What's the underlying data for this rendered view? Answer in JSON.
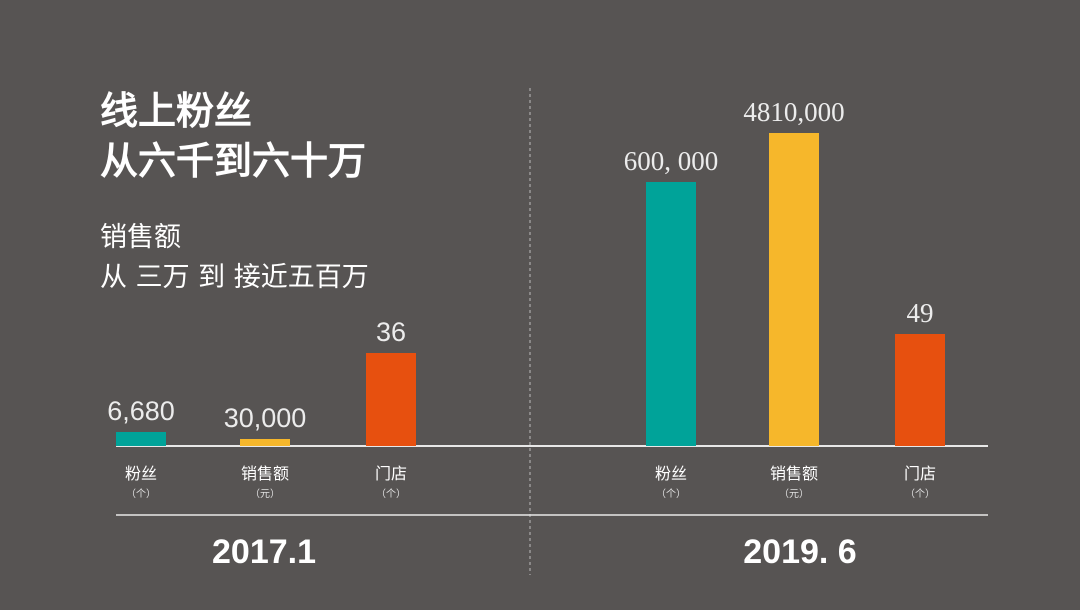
{
  "headline": {
    "line1": "线上粉丝",
    "line2": "从六千到六十万"
  },
  "subline": {
    "line1": "销售额",
    "line2": "从 三万 到 接近五百万"
  },
  "colors": {
    "background": "#575453",
    "teal": "#00A399",
    "yellow": "#F6B72B",
    "orange": "#E7500F",
    "axis": "#e8e8e8"
  },
  "chart_data": [
    {
      "type": "bar",
      "period": "2017.1",
      "categories": [
        "粉丝",
        "销售额",
        "门店"
      ],
      "units": [
        "（个）",
        "（元）",
        "（个）"
      ],
      "values": [
        6680,
        30000,
        36
      ],
      "value_labels": [
        "6,680",
        "30,000",
        "36"
      ],
      "bar_colors": [
        "#00A399",
        "#F6B72B",
        "#E7500F"
      ],
      "note": "bars on independent scales"
    },
    {
      "type": "bar",
      "period": "2019. 6",
      "categories": [
        "粉丝",
        "销售额",
        "门店"
      ],
      "units": [
        "（个）",
        "（元）",
        "（个）"
      ],
      "values": [
        600000,
        4810000,
        49
      ],
      "value_labels": [
        "600, 000",
        "4810,000",
        "49"
      ],
      "bar_colors": [
        "#00A399",
        "#F6B72B",
        "#E7500F"
      ],
      "note": "bars on independent scales"
    }
  ]
}
